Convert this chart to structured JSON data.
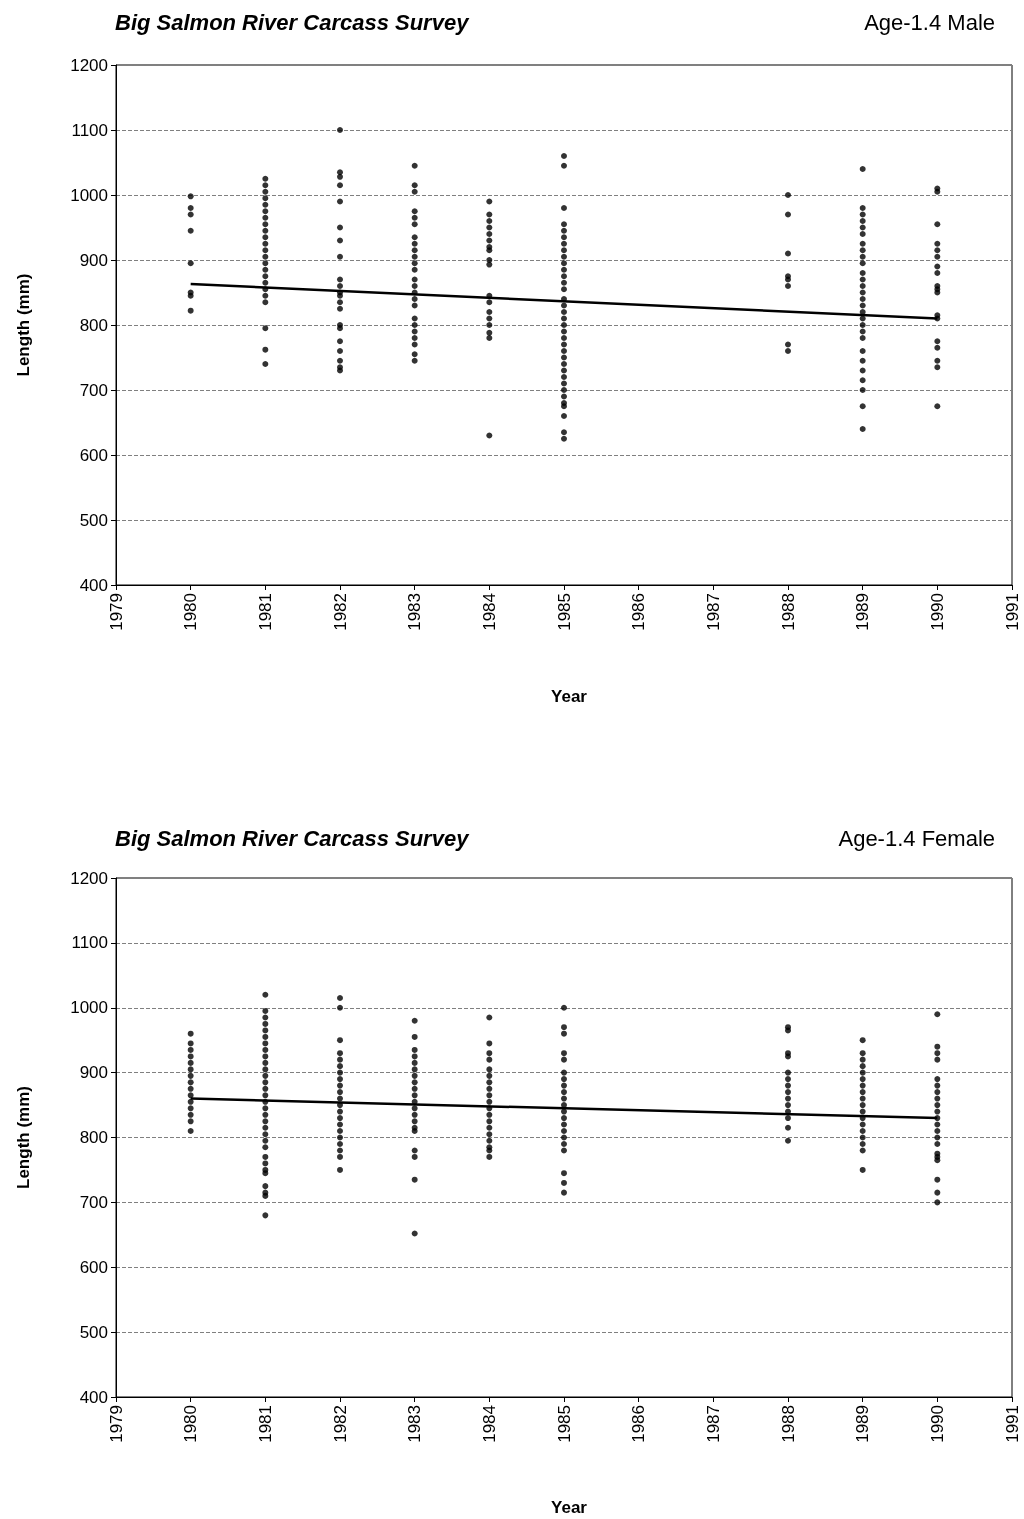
{
  "chart_data": [
    {
      "type": "scatter",
      "title": "Big Salmon River Carcass Survey",
      "subtitle": "Age-1.4 Male",
      "xlabel": "Year",
      "ylabel": "Length (mm)",
      "xlim": [
        1979,
        1991
      ],
      "xticks": [
        1979,
        1980,
        1981,
        1982,
        1983,
        1984,
        1985,
        1986,
        1987,
        1988,
        1989,
        1990,
        1991
      ],
      "ylim": [
        400,
        1200
      ],
      "yticks": [
        400,
        500,
        600,
        700,
        800,
        900,
        1000,
        1100,
        1200
      ],
      "grid": "y",
      "series": [
        {
          "marker": "circle",
          "color": "#000000",
          "x": [
            1980,
            1980,
            1980,
            1980,
            1980,
            1980,
            1980,
            1980,
            1981,
            1981,
            1981,
            1981,
            1981,
            1981,
            1981,
            1981,
            1981,
            1981,
            1981,
            1981,
            1981,
            1981,
            1981,
            1981,
            1981,
            1981,
            1981,
            1981,
            1981,
            1981,
            1981,
            1982,
            1982,
            1982,
            1982,
            1982,
            1982,
            1982,
            1982,
            1982,
            1982,
            1982,
            1982,
            1982,
            1982,
            1982,
            1982,
            1982,
            1982,
            1982,
            1982,
            1982,
            1983,
            1983,
            1983,
            1983,
            1983,
            1983,
            1983,
            1983,
            1983,
            1983,
            1983,
            1983,
            1983,
            1983,
            1983,
            1983,
            1983,
            1983,
            1983,
            1983,
            1983,
            1983,
            1983,
            1983,
            1984,
            1984,
            1984,
            1984,
            1984,
            1984,
            1984,
            1984,
            1984,
            1984,
            1984,
            1984,
            1984,
            1984,
            1984,
            1984,
            1984,
            1984,
            1985,
            1985,
            1985,
            1985,
            1985,
            1985,
            1985,
            1985,
            1985,
            1985,
            1985,
            1985,
            1985,
            1985,
            1985,
            1985,
            1985,
            1985,
            1985,
            1985,
            1985,
            1985,
            1985,
            1985,
            1985,
            1985,
            1985,
            1985,
            1985,
            1985,
            1985,
            1985,
            1985,
            1985,
            1985,
            1988,
            1988,
            1988,
            1988,
            1988,
            1988,
            1988,
            1988,
            1989,
            1989,
            1989,
            1989,
            1989,
            1989,
            1989,
            1989,
            1989,
            1989,
            1989,
            1989,
            1989,
            1989,
            1989,
            1989,
            1989,
            1989,
            1989,
            1989,
            1989,
            1989,
            1989,
            1989,
            1989,
            1989,
            1989,
            1989,
            1990,
            1990,
            1990,
            1990,
            1990,
            1990,
            1990,
            1990,
            1990,
            1990,
            1990,
            1990,
            1990,
            1990,
            1990,
            1990,
            1990,
            1990
          ],
          "values": [
            998,
            980,
            970,
            945,
            895,
            850,
            845,
            822,
            1025,
            1015,
            1005,
            995,
            985,
            975,
            965,
            955,
            945,
            935,
            925,
            915,
            905,
            895,
            885,
            875,
            865,
            855,
            845,
            835,
            795,
            762,
            740,
            1100,
            1035,
            1028,
            1015,
            990,
            950,
            930,
            905,
            870,
            860,
            850,
            845,
            835,
            825,
            800,
            795,
            775,
            760,
            745,
            735,
            730,
            1045,
            1015,
            1005,
            975,
            965,
            955,
            935,
            925,
            915,
            905,
            895,
            885,
            870,
            860,
            850,
            840,
            830,
            810,
            800,
            790,
            780,
            770,
            755,
            745,
            990,
            970,
            960,
            950,
            940,
            930,
            920,
            915,
            900,
            893,
            845,
            835,
            820,
            810,
            800,
            788,
            780,
            630,
            1060,
            1045,
            980,
            955,
            945,
            935,
            925,
            915,
            905,
            895,
            885,
            875,
            865,
            855,
            840,
            830,
            820,
            810,
            800,
            790,
            780,
            770,
            760,
            750,
            740,
            730,
            720,
            710,
            700,
            690,
            680,
            675,
            660,
            635,
            625,
            1000,
            970,
            910,
            875,
            870,
            860,
            770,
            760,
            1040,
            980,
            970,
            960,
            950,
            940,
            925,
            915,
            905,
            895,
            880,
            870,
            860,
            850,
            840,
            830,
            820,
            810,
            800,
            790,
            780,
            760,
            745,
            730,
            715,
            700,
            675,
            640,
            1010,
            1005,
            955,
            925,
            915,
            905,
            890,
            880,
            860,
            855,
            850,
            815,
            810,
            775,
            765,
            745,
            735,
            675
          ]
        },
        {
          "type": "line",
          "marker": "none",
          "color": "#000000",
          "x": [
            1980,
            1990
          ],
          "values": [
            863,
            810
          ]
        }
      ]
    },
    {
      "type": "scatter",
      "title": "Big Salmon River Carcass Survey",
      "subtitle": "Age-1.4 Female",
      "xlabel": "Year",
      "ylabel": "Length (mm)",
      "xlim": [
        1979,
        1991
      ],
      "xticks": [
        1979,
        1980,
        1981,
        1982,
        1983,
        1984,
        1985,
        1986,
        1987,
        1988,
        1989,
        1990,
        1991
      ],
      "ylim": [
        400,
        1200
      ],
      "yticks": [
        400,
        500,
        600,
        700,
        800,
        900,
        1000,
        1100,
        1200
      ],
      "grid": "y",
      "series": [
        {
          "marker": "circle",
          "color": "#000000",
          "x": [
            1980,
            1980,
            1980,
            1980,
            1980,
            1980,
            1980,
            1980,
            1980,
            1980,
            1980,
            1980,
            1980,
            1980,
            1980,
            1981,
            1981,
            1981,
            1981,
            1981,
            1981,
            1981,
            1981,
            1981,
            1981,
            1981,
            1981,
            1981,
            1981,
            1981,
            1981,
            1981,
            1981,
            1981,
            1981,
            1981,
            1981,
            1981,
            1981,
            1981,
            1981,
            1981,
            1981,
            1981,
            1981,
            1981,
            1982,
            1982,
            1982,
            1982,
            1982,
            1982,
            1982,
            1982,
            1982,
            1982,
            1982,
            1982,
            1982,
            1982,
            1982,
            1982,
            1982,
            1982,
            1982,
            1982,
            1982,
            1983,
            1983,
            1983,
            1983,
            1983,
            1983,
            1983,
            1983,
            1983,
            1983,
            1983,
            1983,
            1983,
            1983,
            1983,
            1983,
            1983,
            1983,
            1983,
            1983,
            1984,
            1984,
            1984,
            1984,
            1984,
            1984,
            1984,
            1984,
            1984,
            1984,
            1984,
            1984,
            1984,
            1984,
            1984,
            1984,
            1984,
            1984,
            1984,
            1985,
            1985,
            1985,
            1985,
            1985,
            1985,
            1985,
            1985,
            1985,
            1985,
            1985,
            1985,
            1985,
            1985,
            1985,
            1985,
            1985,
            1985,
            1985,
            1985,
            1985,
            1988,
            1988,
            1988,
            1988,
            1988,
            1988,
            1988,
            1988,
            1988,
            1988,
            1988,
            1988,
            1988,
            1988,
            1989,
            1989,
            1989,
            1989,
            1989,
            1989,
            1989,
            1989,
            1989,
            1989,
            1989,
            1989,
            1989,
            1989,
            1989,
            1989,
            1989,
            1989,
            1990,
            1990,
            1990,
            1990,
            1990,
            1990,
            1990,
            1990,
            1990,
            1990,
            1990,
            1990,
            1990,
            1990,
            1990,
            1990,
            1990,
            1990,
            1990,
            1990,
            1990
          ],
          "values": [
            960,
            945,
            935,
            925,
            915,
            905,
            895,
            885,
            875,
            865,
            855,
            845,
            835,
            825,
            810,
            1020,
            995,
            985,
            975,
            965,
            955,
            945,
            935,
            925,
            915,
            905,
            895,
            885,
            875,
            865,
            855,
            845,
            835,
            825,
            815,
            805,
            795,
            785,
            770,
            760,
            750,
            745,
            725,
            715,
            710,
            680,
            1015,
            1000,
            950,
            930,
            920,
            910,
            900,
            890,
            880,
            870,
            860,
            850,
            840,
            830,
            820,
            810,
            800,
            790,
            780,
            770,
            750,
            980,
            955,
            935,
            925,
            915,
            905,
            895,
            885,
            875,
            865,
            855,
            845,
            835,
            825,
            815,
            810,
            780,
            770,
            735,
            652,
            985,
            945,
            930,
            920,
            905,
            895,
            885,
            875,
            865,
            855,
            845,
            835,
            825,
            815,
            805,
            795,
            785,
            780,
            770,
            1000,
            970,
            960,
            930,
            920,
            900,
            890,
            880,
            870,
            860,
            850,
            840,
            830,
            820,
            810,
            800,
            790,
            780,
            745,
            730,
            715,
            970,
            965,
            930,
            925,
            900,
            890,
            880,
            870,
            860,
            850,
            840,
            830,
            815,
            795,
            950,
            930,
            920,
            910,
            900,
            890,
            880,
            870,
            860,
            850,
            840,
            830,
            820,
            810,
            800,
            790,
            780,
            750,
            990,
            940,
            930,
            920,
            890,
            880,
            870,
            860,
            850,
            840,
            830,
            820,
            810,
            800,
            790,
            775,
            770,
            765,
            735,
            715,
            700
          ]
        },
        {
          "type": "line",
          "marker": "none",
          "color": "#000000",
          "x": [
            1980,
            1990
          ],
          "values": [
            860,
            830
          ]
        }
      ]
    }
  ]
}
